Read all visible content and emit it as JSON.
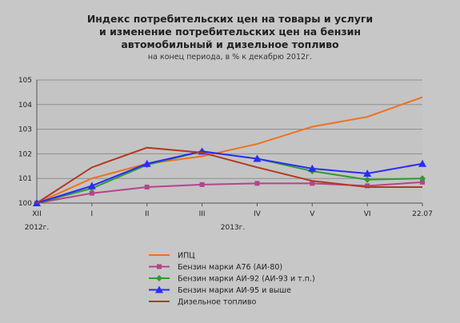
{
  "chart_data": {
    "type": "line",
    "title_lines": [
      "Индекс потребительских цен на товары и услуги",
      "и изменение потребительских цен на бензин",
      "автомобильный и дизельное топливо"
    ],
    "subtitle": "на конец периода, в % к декабрю 2012г.",
    "categories": [
      "XII",
      "I",
      "II",
      "III",
      "IV",
      "V",
      "VI",
      "22.07"
    ],
    "year_labels": [
      "2012г.",
      "2013г."
    ],
    "ylim": [
      100,
      105
    ],
    "yticks": [
      "100",
      "101",
      "102",
      "103",
      "104",
      "105"
    ],
    "grid": true,
    "legend_position": "bottom",
    "series": [
      {
        "name": "ИПЦ",
        "color": "#f07020",
        "marker": "none",
        "values": [
          100,
          101.0,
          101.6,
          101.9,
          102.4,
          103.1,
          103.5,
          104.3
        ]
      },
      {
        "name": "Бензин марки А76 (АИ-80)",
        "color": "#b4448c",
        "marker": "square",
        "values": [
          100,
          100.4,
          100.65,
          100.75,
          100.8,
          100.8,
          100.7,
          100.85
        ]
      },
      {
        "name": "Бензин марки АИ-92 (АИ-93 и т.п.)",
        "color": "#2e9a36",
        "marker": "diamond",
        "values": [
          100,
          100.6,
          101.55,
          102.1,
          101.8,
          101.3,
          100.95,
          101.0
        ]
      },
      {
        "name": "Бензин марки АИ-95 и выше",
        "color": "#2a2aff",
        "marker": "triangle",
        "values": [
          100,
          100.7,
          101.6,
          102.1,
          101.8,
          101.4,
          101.2,
          101.6
        ]
      },
      {
        "name": "Дизельное топливо",
        "color": "#b13a20",
        "marker": "none",
        "values": [
          100,
          101.45,
          102.25,
          102.05,
          101.45,
          100.9,
          100.65,
          100.65
        ]
      }
    ]
  }
}
